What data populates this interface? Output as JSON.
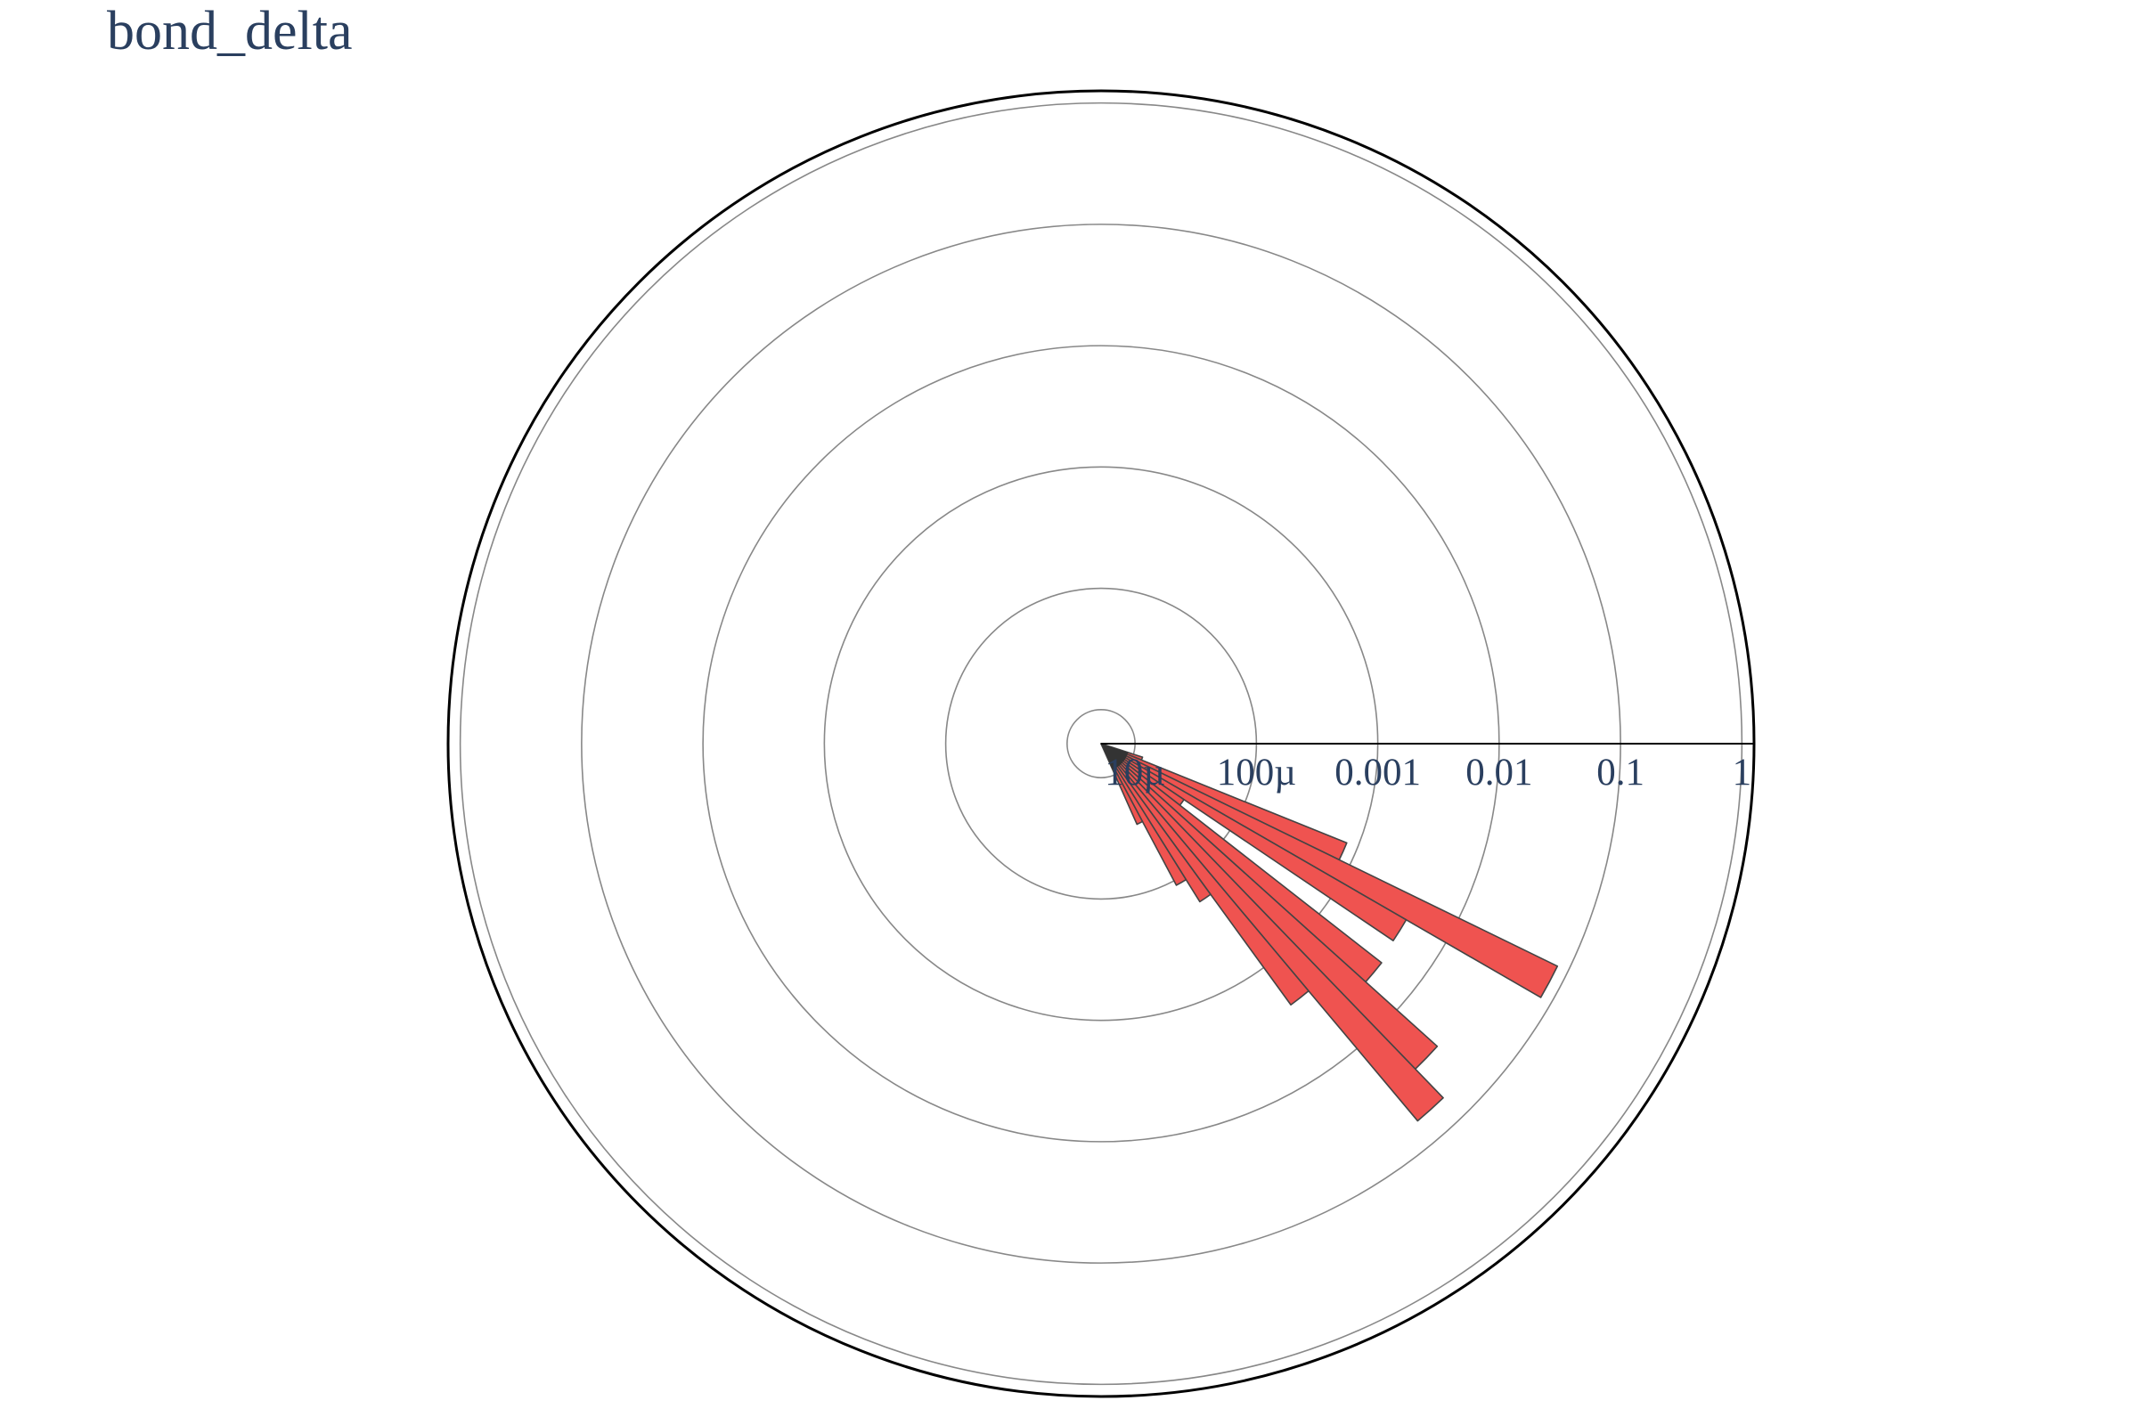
{
  "chart_data": {
    "type": "barpolar",
    "title": "bond_delta",
    "radial_axis": {
      "type": "log",
      "range_log10": [
        -5.28,
        0.1
      ],
      "tickvals": [
        1e-05,
        0.0001,
        0.001,
        0.01,
        0.1,
        1
      ],
      "ticktext": [
        "10µ",
        "100µ",
        "0.001",
        "0.01",
        "0.1",
        "1"
      ]
    },
    "angular_axis": {
      "rotation_deg": 0,
      "direction": "clockwise",
      "showticklabels": false
    },
    "colors": {
      "bar_fill": "#ef5350",
      "bar_outline": "#444444",
      "grid": "#888888",
      "outline": "#000000",
      "font": "#2a3f5f"
    },
    "series": [
      {
        "theta": [
          20,
          24,
          28,
          32,
          36,
          40,
          44,
          48,
          52,
          56,
          60,
          64
        ],
        "width": 4,
        "r": [
          1.2e-05,
          0.0008,
          0.08,
          0.0042,
          3.5e-05,
          0.0045,
          0.028,
          0.06,
          0.0024,
          0.00018,
          0.00011,
          2.8e-05
        ]
      }
    ]
  }
}
